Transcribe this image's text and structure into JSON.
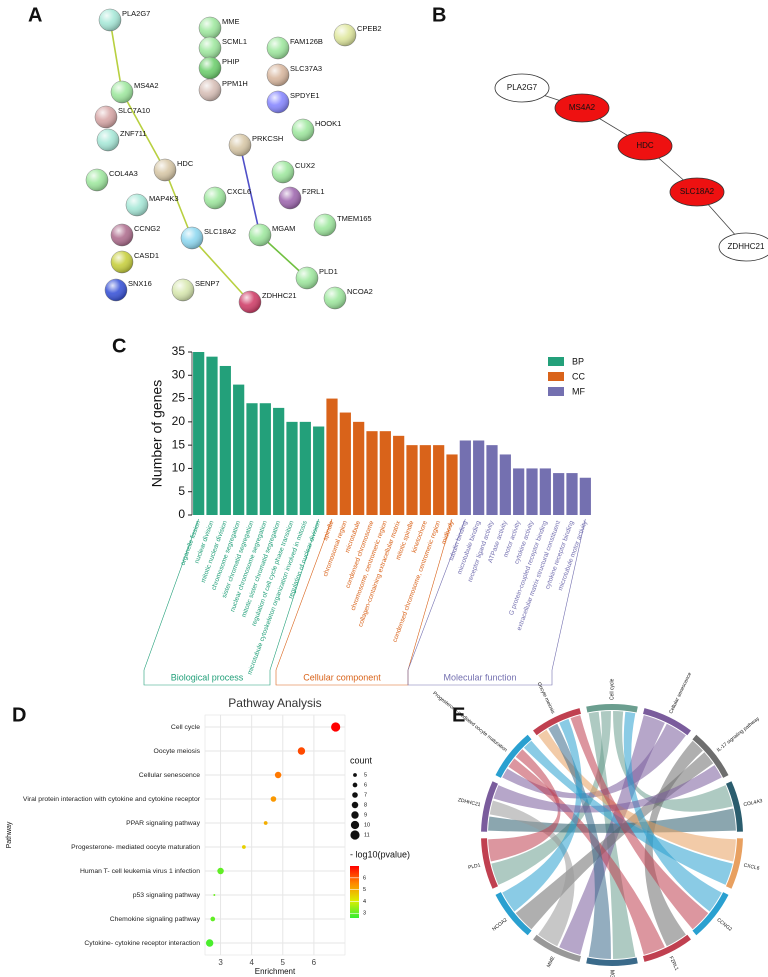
{
  "panel_labels": [
    "A",
    "B",
    "C",
    "D",
    "E"
  ],
  "network_a": {
    "nodes": [
      {
        "label": "PLA2G7",
        "color": "#a8e8d8"
      },
      {
        "label": "MS4A2",
        "color": "#a0e8a0"
      },
      {
        "label": "SLC7A10",
        "color": "#d8a8a8"
      },
      {
        "label": "ZNF711",
        "color": "#a8e8d8"
      },
      {
        "label": "COL4A3",
        "color": "#a0e8a0"
      },
      {
        "label": "HDC",
        "color": "#d8c8a8"
      },
      {
        "label": "MAP4K3",
        "color": "#a8e8d8"
      },
      {
        "label": "CCNG2",
        "color": "#b07090"
      },
      {
        "label": "CASD1",
        "color": "#c8d040"
      },
      {
        "label": "SNX16",
        "color": "#3b55d8"
      },
      {
        "label": "SLC18A2",
        "color": "#8fd8f0"
      },
      {
        "label": "SENP7",
        "color": "#d8e8b0"
      },
      {
        "label": "ZDHHC21",
        "color": "#d0406a"
      },
      {
        "label": "MME",
        "color": "#a0e8a0"
      },
      {
        "label": "SCML1",
        "color": "#a0e8a0"
      },
      {
        "label": "PHIP",
        "color": "#70d070"
      },
      {
        "label": "PPM1H",
        "color": "#d8c0b8"
      },
      {
        "label": "FAM126B",
        "color": "#a0e8a0"
      },
      {
        "label": "SLC37A3",
        "color": "#d9b8a0"
      },
      {
        "label": "SPDYE1",
        "color": "#8888ff"
      },
      {
        "label": "CPEB2",
        "color": "#e0e8a0"
      },
      {
        "label": "PRKCSH",
        "color": "#d8c8a8"
      },
      {
        "label": "HOOK1",
        "color": "#a0e8a0"
      },
      {
        "label": "CUX2",
        "color": "#a0e8a0"
      },
      {
        "label": "F2RL1",
        "color": "#a06ab0"
      },
      {
        "label": "CXCL6",
        "color": "#a0e8a0"
      },
      {
        "label": "MGAM",
        "color": "#a0e8a0"
      },
      {
        "label": "TMEM165",
        "color": "#a0e8a0"
      },
      {
        "label": "PLD1",
        "color": "#a0e8a0"
      },
      {
        "label": "NCOA2",
        "color": "#a0e8a0"
      }
    ],
    "edges": [
      {
        "source": 0,
        "target": 1,
        "color": "#b8d040"
      },
      {
        "source": 1,
        "target": 5,
        "color": "#b8d040"
      },
      {
        "source": 5,
        "target": 10,
        "color": "#b8d040"
      },
      {
        "source": 10,
        "target": 12,
        "color": "#b8d040"
      },
      {
        "source": 21,
        "target": 26,
        "color": "#5050c8"
      },
      {
        "source": 26,
        "target": 28,
        "color": "#70c040"
      }
    ]
  },
  "network_b": {
    "nodes": [
      {
        "label": "PLA2G7",
        "fill": "#ffffff"
      },
      {
        "label": "MS4A2",
        "fill": "#ee1111"
      },
      {
        "label": "HDC",
        "fill": "#ee1111"
      },
      {
        "label": "SLC18A2",
        "fill": "#ee1111"
      },
      {
        "label": "ZDHHC21",
        "fill": "#ffffff"
      }
    ],
    "edges": [
      [
        0,
        1
      ],
      [
        1,
        2
      ],
      [
        2,
        3
      ],
      [
        3,
        4
      ]
    ]
  },
  "chart_data": [
    {
      "type": "bar",
      "ylabel": "Number of genes",
      "ylim": [
        0,
        35
      ],
      "yticks": [
        0,
        5,
        10,
        15,
        20,
        25,
        30,
        35
      ],
      "series": [
        {
          "name": "BP",
          "color": "#23a07a",
          "group_label": "Biological process",
          "categories": [
            "organelle fission",
            "nuclear division",
            "mitotic nuclear division",
            "chromosome segregation",
            "sister chromatid segregation",
            "nuclear chromosome segregation",
            "mitotic sister chromatid segregation",
            "regulation of cell cycle phase transition",
            "microtubule cytoskeleton organization involved in mitosis",
            "regulation of nuclear division"
          ],
          "values": [
            35,
            34,
            32,
            28,
            24,
            24,
            23,
            20,
            20,
            19
          ]
        },
        {
          "name": "CC",
          "color": "#d9631a",
          "group_label": "Cellular component",
          "categories": [
            "spindle",
            "chromosomal region",
            "microtubule",
            "condensed chromosome",
            "chromosome, centromeric region",
            "collagen-containing extracellular matrix",
            "mitotic spindle",
            "kinetochore",
            "condensed chromosome, centromeric region",
            "midbody"
          ],
          "values": [
            25,
            22,
            20,
            18,
            18,
            17,
            15,
            15,
            15,
            13
          ]
        },
        {
          "name": "MF",
          "color": "#7470b0",
          "group_label": "Molecular function",
          "categories": [
            "tubulin binding",
            "microtubule binding",
            "receptor ligand activity",
            "ATPase activity",
            "motor activity",
            "cytokine activity",
            "G protein-coupled receptor binding",
            "extracellular matrix structural constituent",
            "cytokine receptor binding",
            "microtubule motor activity"
          ],
          "values": [
            16,
            16,
            15,
            13,
            10,
            10,
            10,
            9,
            9,
            8
          ]
        }
      ]
    },
    {
      "type": "scatter",
      "title": "Pathway Analysis",
      "xlabel": "Enrichment",
      "ylabel": "Pathway",
      "categories": [
        "Cell cycle",
        "Oocyte meiosis",
        "Cellular senescence",
        "Viral protein interaction with cytokine and cytokine receptor",
        "PPAR signaling pathway",
        "Progesterone- mediated oocyte maturation",
        "Human T- cell leukemia virus 1 infection",
        "p53 signaling pathway",
        "Chemokine signaling pathway",
        "Cytokine- cytokine receptor interaction"
      ],
      "x": [
        6.7,
        5.6,
        4.85,
        4.7,
        4.45,
        3.75,
        3.0,
        2.8,
        2.75,
        2.65
      ],
      "count": [
        11,
        9,
        8,
        7,
        5,
        5,
        8,
        3,
        6,
        9
      ],
      "pvalue": [
        7.0,
        6.2,
        5.7,
        5.3,
        5.0,
        4.5,
        3.0,
        3.1,
        3.0,
        2.8
      ],
      "xlim": [
        2.5,
        7
      ],
      "xticks": [
        3,
        4,
        5,
        6
      ],
      "grid": true,
      "size_legend": {
        "title": "count",
        "values": [
          5,
          6,
          7,
          8,
          9,
          10,
          11
        ]
      },
      "color_legend": {
        "title": "- log10(pvalue)",
        "clim": [
          2.6,
          7
        ],
        "ticks": [
          3,
          4,
          5,
          6
        ],
        "colors": [
          "#33ee33",
          "#ddee00",
          "#ff8800",
          "#ff0000"
        ]
      }
    }
  ],
  "chord": {
    "sectors": [
      {
        "label": "Cell cycle",
        "color": "#6b9e8f"
      },
      {
        "label": "Cellular senescence",
        "color": "#7a5c9c"
      },
      {
        "label": "IL-17 signaling pathway",
        "color": "#6e6e6e"
      },
      {
        "label": "COL4A3",
        "color": "#2b5d6e"
      },
      {
        "label": "CXCL6",
        "color": "#e8a060"
      },
      {
        "label": "CCNG2",
        "color": "#2aa0d0"
      },
      {
        "label": "F2RL1",
        "color": "#c04050"
      },
      {
        "label": "MGAM",
        "color": "#3a6a8a"
      },
      {
        "label": "MME",
        "color": "#999999"
      },
      {
        "label": "NCOA2",
        "color": "#2aa0d0"
      },
      {
        "label": "PLD1",
        "color": "#c04050"
      },
      {
        "label": "ZDHHC21",
        "color": "#7a5c9c"
      },
      {
        "label": "Progesterone-mediated oocyte maturation",
        "color": "#2aa0d0"
      },
      {
        "label": "Oocyte meiosis",
        "color": "#c04050"
      }
    ],
    "links": [
      [
        0,
        7
      ],
      [
        0,
        10
      ],
      [
        0,
        3
      ],
      [
        1,
        8
      ],
      [
        1,
        12
      ],
      [
        2,
        6
      ],
      [
        2,
        9
      ],
      [
        3,
        11
      ],
      [
        4,
        13
      ],
      [
        5,
        0
      ],
      [
        6,
        12
      ],
      [
        7,
        13
      ],
      [
        8,
        11
      ],
      [
        9,
        13
      ],
      [
        10,
        12
      ],
      [
        11,
        2
      ],
      [
        12,
        4
      ],
      [
        13,
        5
      ]
    ]
  }
}
